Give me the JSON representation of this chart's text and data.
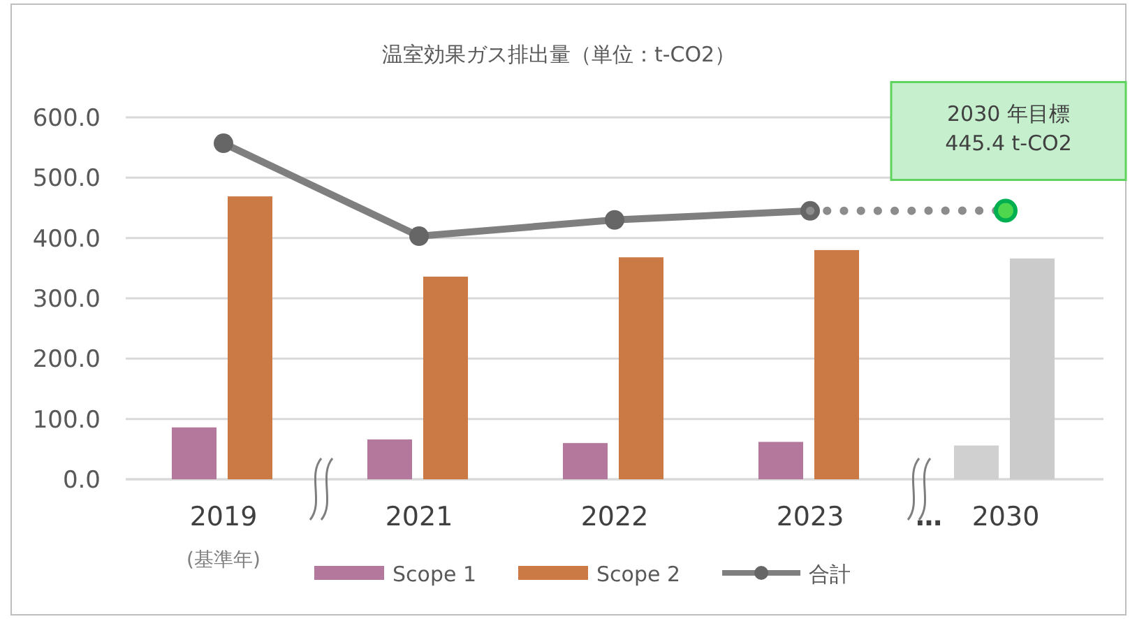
{
  "chart_data": {
    "type": "bar",
    "title": "温室効果ガス排出量（単位：t-CO2）",
    "categories": [
      "2019",
      "2021",
      "2022",
      "2023",
      "2030"
    ],
    "series": [
      {
        "name": "Scope 1",
        "color": "#b3789c",
        "values": [
          86,
          66,
          60,
          62,
          56
        ],
        "colors": [
          "#b3789c",
          "#b3789c",
          "#b3789c",
          "#b3789c",
          "#d0d0d0"
        ]
      },
      {
        "name": "Scope 2",
        "color": "#cb7945",
        "values": [
          469,
          336,
          368,
          380,
          366
        ],
        "colors": [
          "#cb7945",
          "#cb7945",
          "#cb7945",
          "#cb7945",
          "#cbcbcb"
        ]
      },
      {
        "name": "合計",
        "type": "line",
        "color": "#7f7f7f",
        "marker": "circle",
        "line_style": "solid",
        "values": [
          557,
          403,
          430,
          445,
          null
        ]
      },
      {
        "type": "line",
        "color": "#8c8c8c",
        "marker": "none",
        "line_style": "dotted",
        "values": [
          null,
          null,
          null,
          445,
          445.4
        ]
      },
      {
        "type": "scatter",
        "color": "#00b050",
        "marker": "circle",
        "values": [
          null,
          null,
          null,
          null,
          445.4
        ]
      }
    ],
    "ylim": [
      0,
      600
    ],
    "yticks": [
      {
        "value": 0,
        "label": "0.0"
      },
      {
        "value": 100,
        "label": "100.0"
      },
      {
        "value": 200,
        "label": "200.0"
      },
      {
        "value": 300,
        "label": "300.0"
      },
      {
        "value": 400,
        "label": "400.0"
      },
      {
        "value": 500,
        "label": "500.0"
      },
      {
        "value": 600,
        "label": "600.0"
      }
    ],
    "grid": "y",
    "legend": "bottom",
    "annotations": [
      {
        "text": "2030 年目標\n445.4 t-CO2",
        "x": "2030",
        "y": 445.4
      },
      "(基準年)",
      "…"
    ]
  }
}
